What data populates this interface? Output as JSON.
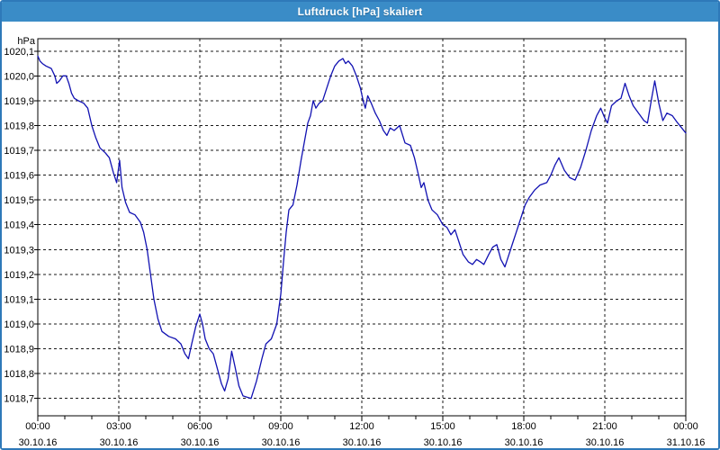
{
  "window": {
    "title": "Luftdruck [hPa] skaliert"
  },
  "colors": {
    "titlebar_bg": "#3a8cc7",
    "window_border": "#2e79b9",
    "plot_background": "#ffffff",
    "grid_color": "#1a1a1a",
    "line_color": "#1212b2",
    "text_color": "#000000"
  },
  "chart_data": {
    "type": "line",
    "title": "Luftdruck [hPa] skaliert",
    "unit_label": "hPa",
    "legend": "none",
    "grid": "dashed-both-axes",
    "x_axis": {
      "xlim_hours": [
        0,
        24
      ],
      "minor_tick_hours": 1,
      "major_tick_hours": 3,
      "ticks": [
        {
          "hour": 0,
          "time": "00:00",
          "date": "30.10.16"
        },
        {
          "hour": 3,
          "time": "03:00",
          "date": "30.10.16"
        },
        {
          "hour": 6,
          "time": "06:00",
          "date": "30.10.16"
        },
        {
          "hour": 9,
          "time": "09:00",
          "date": "30.10.16"
        },
        {
          "hour": 12,
          "time": "12:00",
          "date": "30.10.16"
        },
        {
          "hour": 15,
          "time": "15:00",
          "date": "30.10.16"
        },
        {
          "hour": 18,
          "time": "18:00",
          "date": "30.10.16"
        },
        {
          "hour": 21,
          "time": "21:00",
          "date": "30.10.16"
        },
        {
          "hour": 24,
          "time": "00:00",
          "date": "31.10.16"
        }
      ]
    },
    "y_axis": {
      "ylim": [
        1018.63,
        1020.15
      ],
      "ticks": [
        {
          "label": "1020,1",
          "value": 1020.1
        },
        {
          "label": "1020,0",
          "value": 1020.0
        },
        {
          "label": "1019,9",
          "value": 1019.9
        },
        {
          "label": "1019,8",
          "value": 1019.8
        },
        {
          "label": "1019,7",
          "value": 1019.7
        },
        {
          "label": "1019,6",
          "value": 1019.6
        },
        {
          "label": "1019,5",
          "value": 1019.5
        },
        {
          "label": "1019,4",
          "value": 1019.4
        },
        {
          "label": "1019,3",
          "value": 1019.3
        },
        {
          "label": "1019,2",
          "value": 1019.2
        },
        {
          "label": "1019,1",
          "value": 1019.1
        },
        {
          "label": "1019,0",
          "value": 1019.0
        },
        {
          "label": "1018,9",
          "value": 1018.9
        },
        {
          "label": "1018,8",
          "value": 1018.8
        },
        {
          "label": "1018,7",
          "value": 1018.7
        }
      ]
    },
    "series": [
      {
        "name": "Luftdruck",
        "color": "#1212b2",
        "points_hours_hpa": [
          [
            0,
            1020.08
          ],
          [
            0.08,
            1020.06
          ],
          [
            0.17,
            1020.05
          ],
          [
            0.3,
            1020.04
          ],
          [
            0.5,
            1020.03
          ],
          [
            0.63,
            1020.0
          ],
          [
            0.7,
            1019.97
          ],
          [
            0.8,
            1019.98
          ],
          [
            0.93,
            1020.0
          ],
          [
            1.05,
            1020.0
          ],
          [
            1.15,
            1019.97
          ],
          [
            1.25,
            1019.93
          ],
          [
            1.35,
            1019.91
          ],
          [
            1.5,
            1019.9
          ],
          [
            1.7,
            1019.89
          ],
          [
            1.85,
            1019.87
          ],
          [
            2.0,
            1019.8
          ],
          [
            2.15,
            1019.75
          ],
          [
            2.3,
            1019.71
          ],
          [
            2.5,
            1019.69
          ],
          [
            2.65,
            1019.67
          ],
          [
            2.8,
            1019.61
          ],
          [
            2.92,
            1019.57
          ],
          [
            3.03,
            1019.66
          ],
          [
            3.12,
            1019.55
          ],
          [
            3.25,
            1019.49
          ],
          [
            3.4,
            1019.45
          ],
          [
            3.6,
            1019.44
          ],
          [
            3.8,
            1019.41
          ],
          [
            3.92,
            1019.37
          ],
          [
            4.05,
            1019.3
          ],
          [
            4.15,
            1019.22
          ],
          [
            4.3,
            1019.1
          ],
          [
            4.45,
            1019.02
          ],
          [
            4.6,
            1018.97
          ],
          [
            4.85,
            1018.95
          ],
          [
            5.1,
            1018.94
          ],
          [
            5.3,
            1018.92
          ],
          [
            5.45,
            1018.88
          ],
          [
            5.58,
            1018.86
          ],
          [
            5.7,
            1018.92
          ],
          [
            5.85,
            1018.99
          ],
          [
            6.0,
            1019.04
          ],
          [
            6.1,
            1019.0
          ],
          [
            6.2,
            1018.94
          ],
          [
            6.35,
            1018.9
          ],
          [
            6.5,
            1018.88
          ],
          [
            6.65,
            1018.82
          ],
          [
            6.8,
            1018.76
          ],
          [
            6.92,
            1018.73
          ],
          [
            7.05,
            1018.78
          ],
          [
            7.18,
            1018.89
          ],
          [
            7.3,
            1018.83
          ],
          [
            7.45,
            1018.75
          ],
          [
            7.6,
            1018.71
          ],
          [
            7.9,
            1018.7
          ],
          [
            8.1,
            1018.77
          ],
          [
            8.3,
            1018.86
          ],
          [
            8.45,
            1018.92
          ],
          [
            8.65,
            1018.94
          ],
          [
            8.85,
            1019.0
          ],
          [
            9.0,
            1019.12
          ],
          [
            9.1,
            1019.25
          ],
          [
            9.2,
            1019.37
          ],
          [
            9.3,
            1019.46
          ],
          [
            9.45,
            1019.48
          ],
          [
            9.6,
            1019.56
          ],
          [
            9.75,
            1019.66
          ],
          [
            9.9,
            1019.75
          ],
          [
            10.0,
            1019.81
          ],
          [
            10.1,
            1019.84
          ],
          [
            10.2,
            1019.9
          ],
          [
            10.3,
            1019.87
          ],
          [
            10.42,
            1019.89
          ],
          [
            10.55,
            1019.9
          ],
          [
            10.7,
            1019.95
          ],
          [
            10.85,
            1020.0
          ],
          [
            11.0,
            1020.04
          ],
          [
            11.15,
            1020.06
          ],
          [
            11.3,
            1020.07
          ],
          [
            11.4,
            1020.05
          ],
          [
            11.5,
            1020.06
          ],
          [
            11.65,
            1020.04
          ],
          [
            11.8,
            1020.0
          ],
          [
            11.95,
            1019.95
          ],
          [
            12.05,
            1019.9
          ],
          [
            12.13,
            1019.87
          ],
          [
            12.22,
            1019.92
          ],
          [
            12.35,
            1019.89
          ],
          [
            12.5,
            1019.85
          ],
          [
            12.65,
            1019.82
          ],
          [
            12.8,
            1019.78
          ],
          [
            12.93,
            1019.76
          ],
          [
            13.05,
            1019.79
          ],
          [
            13.2,
            1019.78
          ],
          [
            13.4,
            1019.8
          ],
          [
            13.6,
            1019.73
          ],
          [
            13.8,
            1019.72
          ],
          [
            13.95,
            1019.67
          ],
          [
            14.1,
            1019.6
          ],
          [
            14.2,
            1019.55
          ],
          [
            14.3,
            1019.57
          ],
          [
            14.45,
            1019.5
          ],
          [
            14.6,
            1019.46
          ],
          [
            14.8,
            1019.44
          ],
          [
            15.0,
            1019.4
          ],
          [
            15.15,
            1019.39
          ],
          [
            15.3,
            1019.36
          ],
          [
            15.45,
            1019.38
          ],
          [
            15.6,
            1019.33
          ],
          [
            15.75,
            1019.28
          ],
          [
            15.95,
            1019.25
          ],
          [
            16.1,
            1019.24
          ],
          [
            16.25,
            1019.26
          ],
          [
            16.4,
            1019.25
          ],
          [
            16.52,
            1019.24
          ],
          [
            16.7,
            1019.28
          ],
          [
            16.85,
            1019.31
          ],
          [
            17.0,
            1019.32
          ],
          [
            17.15,
            1019.26
          ],
          [
            17.3,
            1019.23
          ],
          [
            17.45,
            1019.28
          ],
          [
            17.6,
            1019.33
          ],
          [
            17.75,
            1019.38
          ],
          [
            17.9,
            1019.43
          ],
          [
            18.05,
            1019.48
          ],
          [
            18.2,
            1019.51
          ],
          [
            18.4,
            1019.54
          ],
          [
            18.6,
            1019.56
          ],
          [
            18.85,
            1019.57
          ],
          [
            19.0,
            1019.6
          ],
          [
            19.15,
            1019.64
          ],
          [
            19.3,
            1019.67
          ],
          [
            19.5,
            1019.62
          ],
          [
            19.7,
            1019.59
          ],
          [
            19.9,
            1019.58
          ],
          [
            20.1,
            1019.63
          ],
          [
            20.3,
            1019.7
          ],
          [
            20.5,
            1019.78
          ],
          [
            20.7,
            1019.84
          ],
          [
            20.85,
            1019.87
          ],
          [
            21.0,
            1019.83
          ],
          [
            21.1,
            1019.81
          ],
          [
            21.25,
            1019.88
          ],
          [
            21.45,
            1019.9
          ],
          [
            21.6,
            1019.91
          ],
          [
            21.75,
            1019.97
          ],
          [
            21.9,
            1019.92
          ],
          [
            22.05,
            1019.88
          ],
          [
            22.25,
            1019.85
          ],
          [
            22.45,
            1019.82
          ],
          [
            22.58,
            1019.81
          ],
          [
            22.72,
            1019.9
          ],
          [
            22.85,
            1019.98
          ],
          [
            23.0,
            1019.89
          ],
          [
            23.15,
            1019.82
          ],
          [
            23.3,
            1019.85
          ],
          [
            23.5,
            1019.84
          ],
          [
            23.7,
            1019.81
          ],
          [
            23.85,
            1019.79
          ],
          [
            24.0,
            1019.77
          ]
        ]
      }
    ]
  }
}
